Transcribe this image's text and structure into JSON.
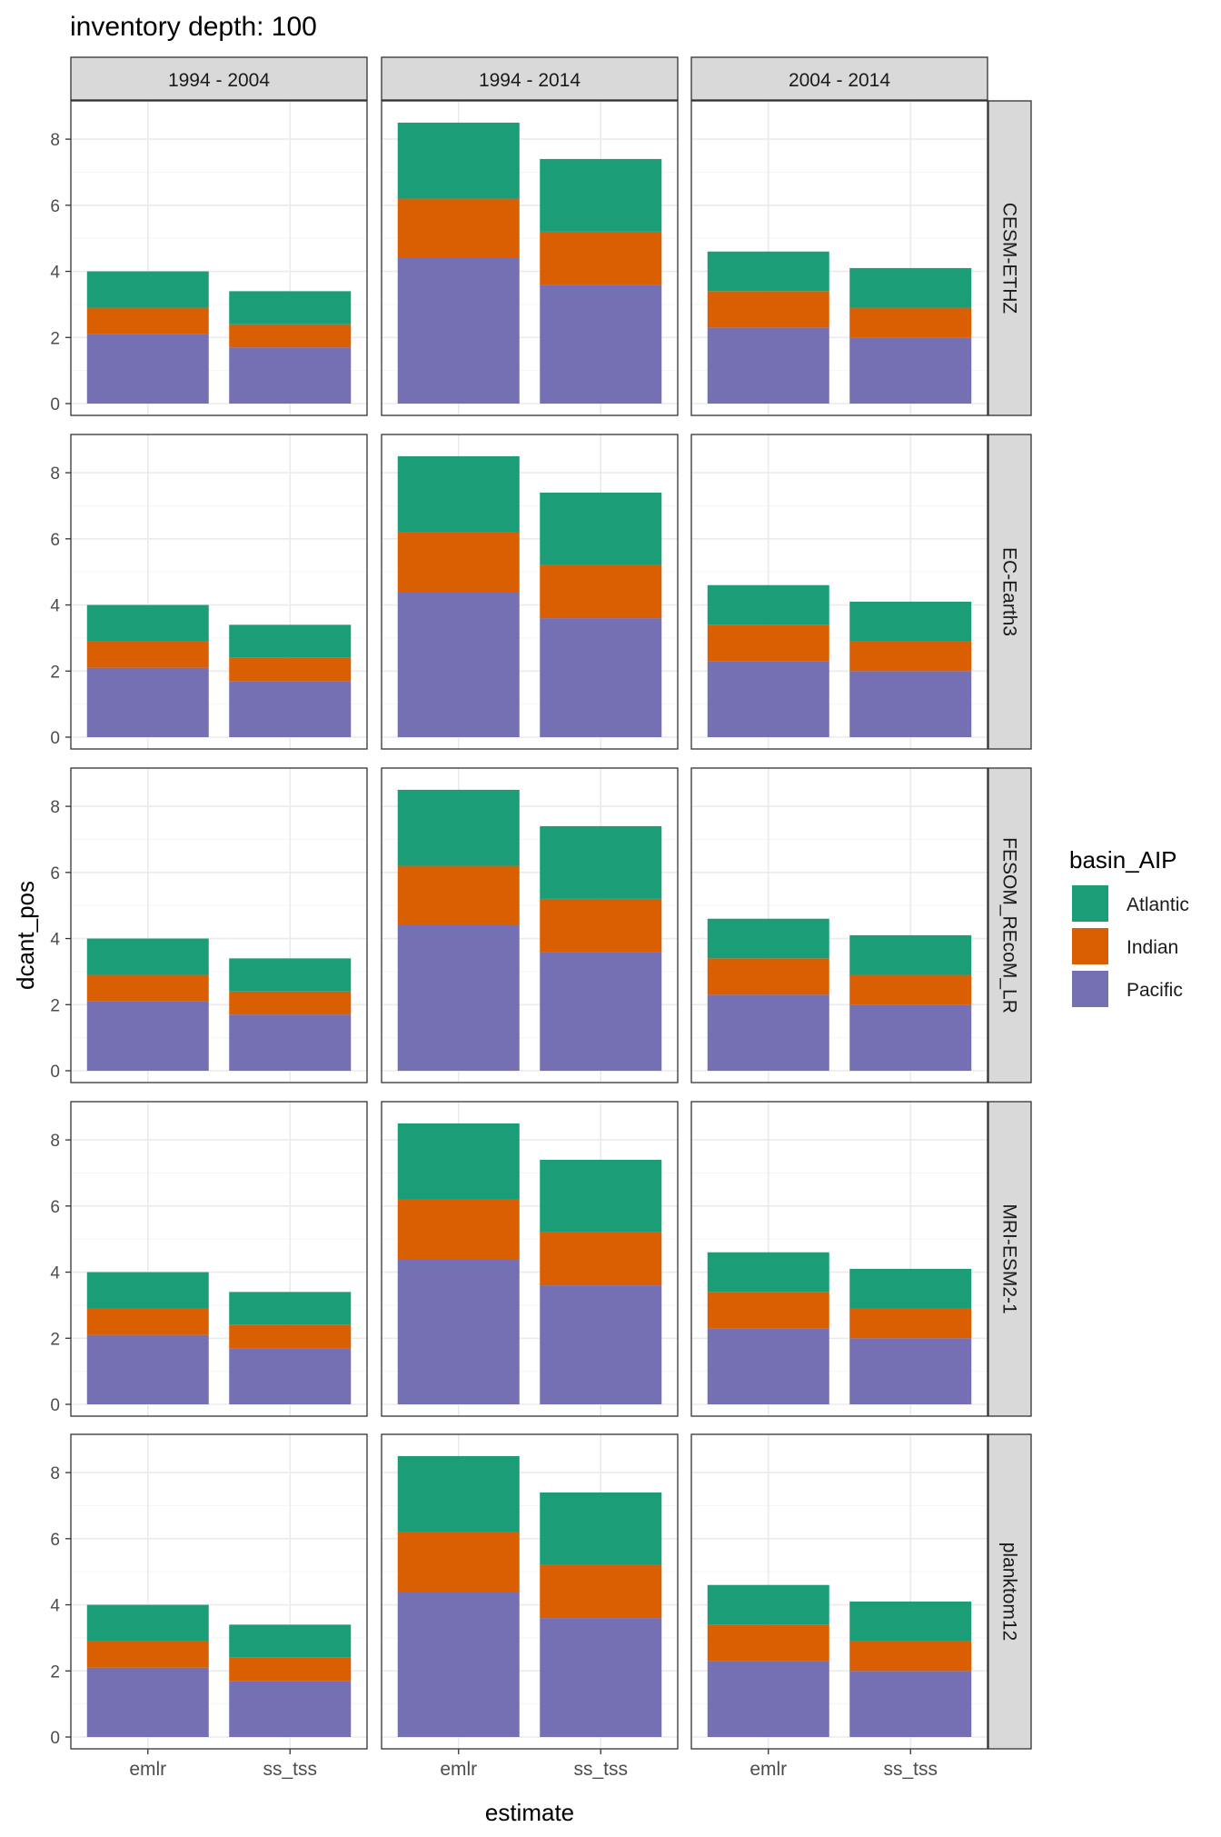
{
  "chart_data": {
    "type": "bar",
    "stacked": true,
    "title": "inventory depth: 100",
    "xlabel": "estimate",
    "ylabel": "dcant_pos",
    "ylim": [
      0,
      8.8
    ],
    "y_ticks": [
      0,
      2,
      4,
      6,
      8
    ],
    "categories": [
      "emlr",
      "ss_tss"
    ],
    "grid": true,
    "legend": {
      "title": "basin_AIP",
      "position": "right",
      "items": [
        {
          "label": "Atlantic",
          "color": "#1b9e77"
        },
        {
          "label": "Indian",
          "color": "#d95f02"
        },
        {
          "label": "Pacific",
          "color": "#7570b3"
        }
      ]
    },
    "facet_columns": [
      "1994 - 2004",
      "1994 - 2014",
      "2004 - 2014"
    ],
    "facet_rows": [
      "CESM-ETHZ",
      "EC-Earth3",
      "FESOM_REcoM_LR",
      "MRI-ESM2-1",
      "planktom12"
    ],
    "stack_order": [
      "Pacific",
      "Indian",
      "Atlantic"
    ],
    "values_by_period": {
      "1994 - 2004": {
        "emlr": {
          "Pacific": 2.1,
          "Indian": 0.8,
          "Atlantic": 1.1
        },
        "ss_tss": {
          "Pacific": 1.7,
          "Indian": 0.7,
          "Atlantic": 1.0
        }
      },
      "1994 - 2014": {
        "emlr": {
          "Pacific": 4.4,
          "Indian": 1.8,
          "Atlantic": 2.3
        },
        "ss_tss": {
          "Pacific": 3.6,
          "Indian": 1.6,
          "Atlantic": 2.2
        }
      },
      "2004 - 2014": {
        "emlr": {
          "Pacific": 2.3,
          "Indian": 1.1,
          "Atlantic": 1.2
        },
        "ss_tss": {
          "Pacific": 2.0,
          "Indian": 0.9,
          "Atlantic": 1.2
        }
      }
    },
    "colors": {
      "Atlantic": "#1b9e77",
      "Indian": "#d95f02",
      "Pacific": "#7570b3",
      "strip_fill": "#d9d9d9",
      "grid_major": "#ebebeb",
      "grid_minor": "#f5f5f5",
      "panel_border": "#333333",
      "text": "#4d4d4d"
    }
  }
}
